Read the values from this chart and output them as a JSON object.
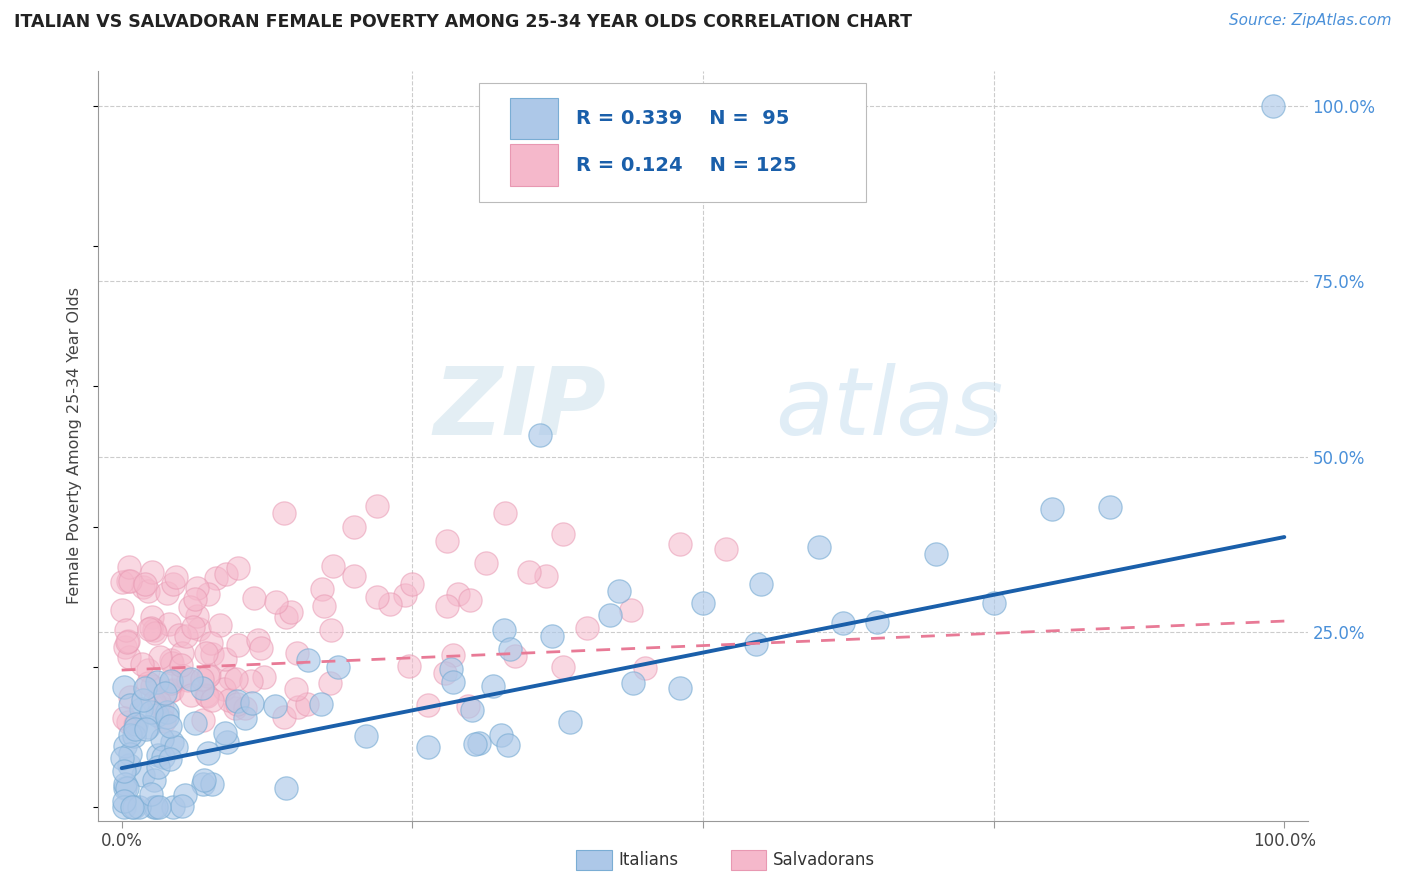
{
  "title": "ITALIAN VS SALVADORAN FEMALE POVERTY AMONG 25-34 YEAR OLDS CORRELATION CHART",
  "source_text": "Source: ZipAtlas.com",
  "ylabel": "Female Poverty Among 25-34 Year Olds",
  "watermark_zip": "ZIP",
  "watermark_atlas": "atlas",
  "italian_R": 0.339,
  "italian_N": 95,
  "salvadoran_R": 0.124,
  "salvadoran_N": 125,
  "italian_color": "#adc8e8",
  "salvadoran_color": "#f5b8cb",
  "italian_edge_color": "#7aadd4",
  "salvadoran_edge_color": "#e898b2",
  "italian_line_color": "#1a5faa",
  "salvadoran_line_color": "#e87a96",
  "background_color": "#ffffff",
  "grid_color": "#cccccc",
  "title_color": "#222222",
  "source_color": "#4a90d9",
  "right_tick_color": "#4a90d9",
  "ylabel_color": "#444444",
  "xtick_color": "#444444",
  "legend_border_color": "#bbbbbb",
  "legend_text_color": "#1a5faa",
  "bottom_legend_text_color": "#333333",
  "xlim": [
    -0.02,
    1.02
  ],
  "ylim_data": [
    0.0,
    1.0
  ],
  "ital_line_x0": 0.0,
  "ital_line_y0": 0.055,
  "ital_line_x1": 1.0,
  "ital_line_y1": 0.385,
  "salv_line_x0": 0.0,
  "salv_line_y0": 0.195,
  "salv_line_x1": 1.0,
  "salv_line_y1": 0.265
}
